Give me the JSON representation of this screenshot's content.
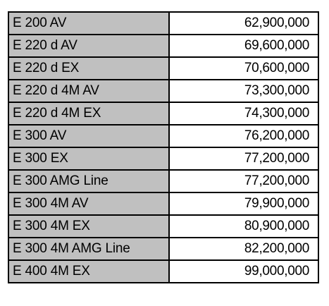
{
  "price_list": {
    "rows": [
      {
        "model": "E 200 AV",
        "price": "62,900,000"
      },
      {
        "model": "E 220 d AV",
        "price": "69,600,000"
      },
      {
        "model": "E 220 d EX",
        "price": "70,600,000"
      },
      {
        "model": "E 220 d 4M AV",
        "price": "73,300,000"
      },
      {
        "model": "E 220 d 4M EX",
        "price": "74,300,000"
      },
      {
        "model": "E 300 AV",
        "price": "76,200,000"
      },
      {
        "model": "E 300 EX",
        "price": "77,200,000"
      },
      {
        "model": "E 300 AMG Line",
        "price": "77,200,000"
      },
      {
        "model": "E 300 4M AV",
        "price": "79,900,000"
      },
      {
        "model": "E 300 4M EX",
        "price": "80,900,000"
      },
      {
        "model": "E 300 4M AMG Line",
        "price": "82,200,000"
      },
      {
        "model": "E 400 4M EX",
        "price": "99,000,000"
      }
    ]
  },
  "colors": {
    "model_cell_background": "#c0c0c0",
    "price_cell_background": "#ffffff",
    "border": "#000000",
    "text": "#000000"
  }
}
